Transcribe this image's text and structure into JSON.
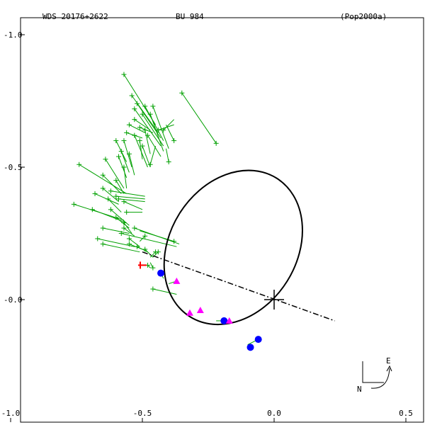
{
  "header": {
    "wds": "WDS 20176+2622",
    "disc": "BU  984",
    "ref": "(Pop2000a)"
  },
  "compass": {
    "east": "E",
    "north": "N"
  },
  "chart_data": {
    "type": "scatter",
    "title": "WDS 20176+2622",
    "subtitle": "BU  984",
    "xlabel": "",
    "ylabel": "",
    "xlim": [
      -1.0,
      0.55
    ],
    "ylim": [
      -0.47,
      1.0
    ],
    "x_ticks": [
      -1.0,
      -0.5,
      0.0,
      0.5
    ],
    "x_tick_labels": [
      "-1.0",
      "-0.5",
      "0.0",
      "0.5"
    ],
    "y_ticks": [
      1.0,
      0.5,
      0.0
    ],
    "y_tick_labels": [
      "-1.0",
      "-0.5",
      "-0.0"
    ],
    "grid": false,
    "colors": {
      "micrometric": "#00a000",
      "interferometric_blue": "#0000ff",
      "interferometric_magenta": "#ff00ff",
      "first_obs": "#ff0000",
      "orbit": "#000000"
    },
    "primary": [
      0.0,
      0.0
    ],
    "orbit_ellipse": {
      "center": [
        -0.155,
        0.197
      ],
      "rx": 0.31,
      "ry": 0.24,
      "rotation_deg": -58
    },
    "line_of_nodes": [
      [
        -0.5,
        0.18
      ],
      [
        0.23,
        -0.08
      ]
    ],
    "series": [
      {
        "marker": "plus",
        "points": [
          [
            -0.57,
            0.85
          ],
          [
            -0.54,
            0.77
          ],
          [
            -0.52,
            0.74
          ],
          [
            -0.49,
            0.73
          ],
          [
            -0.53,
            0.72
          ],
          [
            -0.5,
            0.7
          ],
          [
            -0.46,
            0.73
          ],
          [
            -0.47,
            0.7
          ],
          [
            -0.53,
            0.68
          ],
          [
            -0.51,
            0.65
          ],
          [
            -0.55,
            0.66
          ],
          [
            -0.56,
            0.63
          ],
          [
            -0.49,
            0.64
          ],
          [
            -0.53,
            0.62
          ],
          [
            -0.48,
            0.62
          ],
          [
            -0.44,
            0.64
          ],
          [
            -0.42,
            0.64
          ],
          [
            -0.51,
            0.6
          ],
          [
            -0.6,
            0.6
          ],
          [
            -0.57,
            0.6
          ],
          [
            -0.5,
            0.58
          ],
          [
            -0.58,
            0.56
          ],
          [
            -0.59,
            0.54
          ],
          [
            -0.55,
            0.55
          ],
          [
            -0.57,
            0.5
          ],
          [
            -0.74,
            0.51
          ],
          [
            -0.64,
            0.53
          ],
          [
            -0.6,
            0.45
          ],
          [
            -0.65,
            0.47
          ],
          [
            -0.65,
            0.42
          ],
          [
            -0.68,
            0.4
          ],
          [
            -0.62,
            0.41
          ],
          [
            -0.6,
            0.39
          ],
          [
            -0.59,
            0.38
          ],
          [
            -0.57,
            0.37
          ],
          [
            -0.63,
            0.38
          ],
          [
            -0.76,
            0.36
          ],
          [
            -0.69,
            0.34
          ],
          [
            -0.62,
            0.34
          ],
          [
            -0.56,
            0.33
          ],
          [
            -0.6,
            0.31
          ],
          [
            -0.57,
            0.29
          ],
          [
            -0.65,
            0.27
          ],
          [
            -0.57,
            0.27
          ],
          [
            -0.53,
            0.27
          ],
          [
            -0.58,
            0.25
          ],
          [
            -0.55,
            0.23
          ],
          [
            -0.67,
            0.23
          ],
          [
            -0.65,
            0.21
          ],
          [
            -0.55,
            0.21
          ],
          [
            -0.52,
            0.2
          ],
          [
            -0.49,
            0.19
          ],
          [
            -0.45,
            0.18
          ],
          [
            -0.46,
            0.12
          ],
          [
            -0.48,
            0.13
          ],
          [
            -0.35,
            0.78
          ],
          [
            -0.22,
            0.59
          ],
          [
            -0.38,
            0.6
          ],
          [
            -0.4,
            0.52
          ],
          [
            -0.47,
            0.51
          ],
          [
            -0.38,
            0.22
          ],
          [
            -0.49,
            0.24
          ],
          [
            -0.44,
            0.18
          ],
          [
            -0.46,
            0.04
          ]
        ]
      },
      {
        "marker": "circle",
        "points": [
          [
            -0.43,
            0.1
          ],
          [
            -0.19,
            -0.08
          ],
          [
            -0.06,
            -0.15
          ],
          [
            -0.09,
            -0.18
          ]
        ]
      },
      {
        "marker": "triangle",
        "points": [
          [
            -0.37,
            0.07
          ],
          [
            -0.32,
            -0.05
          ],
          [
            -0.28,
            -0.04
          ],
          [
            -0.17,
            -0.08
          ]
        ]
      },
      {
        "marker": "first-obs",
        "points": [
          [
            -0.5,
            0.13
          ]
        ]
      }
    ],
    "residuals": [
      [
        [
          -0.57,
          0.85
        ],
        [
          -0.45,
          0.66
        ]
      ],
      [
        [
          -0.54,
          0.77
        ],
        [
          -0.44,
          0.63
        ]
      ],
      [
        [
          -0.52,
          0.74
        ],
        [
          -0.43,
          0.61
        ]
      ],
      [
        [
          -0.49,
          0.73
        ],
        [
          -0.42,
          0.6
        ]
      ],
      [
        [
          -0.53,
          0.72
        ],
        [
          -0.43,
          0.58
        ]
      ],
      [
        [
          -0.5,
          0.7
        ],
        [
          -0.42,
          0.58
        ]
      ],
      [
        [
          -0.46,
          0.73
        ],
        [
          -0.4,
          0.57
        ]
      ],
      [
        [
          -0.47,
          0.7
        ],
        [
          -0.42,
          0.56
        ]
      ],
      [
        [
          -0.53,
          0.68
        ],
        [
          -0.47,
          0.64
        ]
      ],
      [
        [
          -0.51,
          0.65
        ],
        [
          -0.46,
          0.63
        ]
      ],
      [
        [
          -0.55,
          0.66
        ],
        [
          -0.49,
          0.63
        ]
      ],
      [
        [
          -0.56,
          0.63
        ],
        [
          -0.5,
          0.61
        ]
      ],
      [
        [
          -0.49,
          0.64
        ],
        [
          -0.47,
          0.55
        ]
      ],
      [
        [
          -0.53,
          0.62
        ],
        [
          -0.48,
          0.5
        ]
      ],
      [
        [
          -0.48,
          0.62
        ],
        [
          -0.43,
          0.54
        ]
      ],
      [
        [
          -0.44,
          0.64
        ],
        [
          -0.38,
          0.66
        ]
      ],
      [
        [
          -0.42,
          0.64
        ],
        [
          -0.38,
          0.68
        ]
      ],
      [
        [
          -0.51,
          0.6
        ],
        [
          -0.5,
          0.53
        ]
      ],
      [
        [
          -0.6,
          0.6
        ],
        [
          -0.56,
          0.52
        ]
      ],
      [
        [
          -0.57,
          0.6
        ],
        [
          -0.54,
          0.5
        ]
      ],
      [
        [
          -0.5,
          0.58
        ],
        [
          -0.47,
          0.5
        ]
      ],
      [
        [
          -0.58,
          0.56
        ],
        [
          -0.55,
          0.48
        ]
      ],
      [
        [
          -0.59,
          0.54
        ],
        [
          -0.56,
          0.46
        ]
      ],
      [
        [
          -0.55,
          0.55
        ],
        [
          -0.53,
          0.47
        ]
      ],
      [
        [
          -0.57,
          0.5
        ],
        [
          -0.56,
          0.42
        ]
      ],
      [
        [
          -0.74,
          0.51
        ],
        [
          -0.56,
          0.4
        ]
      ],
      [
        [
          -0.64,
          0.53
        ],
        [
          -0.57,
          0.42
        ]
      ],
      [
        [
          -0.6,
          0.45
        ],
        [
          -0.57,
          0.4
        ]
      ],
      [
        [
          -0.65,
          0.47
        ],
        [
          -0.58,
          0.4
        ]
      ],
      [
        [
          -0.65,
          0.42
        ],
        [
          -0.59,
          0.37
        ]
      ],
      [
        [
          -0.68,
          0.4
        ],
        [
          -0.59,
          0.36
        ]
      ],
      [
        [
          -0.62,
          0.41
        ],
        [
          -0.49,
          0.39
        ]
      ],
      [
        [
          -0.6,
          0.39
        ],
        [
          -0.49,
          0.38
        ]
      ],
      [
        [
          -0.59,
          0.38
        ],
        [
          -0.49,
          0.37
        ]
      ],
      [
        [
          -0.57,
          0.37
        ],
        [
          -0.5,
          0.34
        ]
      ],
      [
        [
          -0.63,
          0.38
        ],
        [
          -0.58,
          0.33
        ]
      ],
      [
        [
          -0.76,
          0.36
        ],
        [
          -0.57,
          0.3
        ]
      ],
      [
        [
          -0.69,
          0.34
        ],
        [
          -0.56,
          0.29
        ]
      ],
      [
        [
          -0.62,
          0.34
        ],
        [
          -0.55,
          0.28
        ]
      ],
      [
        [
          -0.56,
          0.33
        ],
        [
          -0.5,
          0.33
        ]
      ],
      [
        [
          -0.6,
          0.31
        ],
        [
          -0.55,
          0.27
        ]
      ],
      [
        [
          -0.57,
          0.29
        ],
        [
          -0.54,
          0.25
        ]
      ],
      [
        [
          -0.65,
          0.27
        ],
        [
          -0.55,
          0.25
        ]
      ],
      [
        [
          -0.57,
          0.27
        ],
        [
          -0.53,
          0.24
        ]
      ],
      [
        [
          -0.53,
          0.27
        ],
        [
          -0.36,
          0.21
        ]
      ],
      [
        [
          -0.58,
          0.25
        ],
        [
          -0.37,
          0.2
        ]
      ],
      [
        [
          -0.55,
          0.23
        ],
        [
          -0.51,
          0.2
        ]
      ],
      [
        [
          -0.67,
          0.23
        ],
        [
          -0.53,
          0.2
        ]
      ],
      [
        [
          -0.65,
          0.21
        ],
        [
          -0.51,
          0.18
        ]
      ],
      [
        [
          -0.55,
          0.21
        ],
        [
          -0.5,
          0.19
        ]
      ],
      [
        [
          -0.52,
          0.2
        ],
        [
          -0.48,
          0.18
        ]
      ],
      [
        [
          -0.49,
          0.19
        ],
        [
          -0.46,
          0.16
        ]
      ],
      [
        [
          -0.45,
          0.18
        ],
        [
          -0.47,
          0.16
        ]
      ],
      [
        [
          -0.46,
          0.12
        ],
        [
          -0.47,
          0.14
        ]
      ],
      [
        [
          -0.48,
          0.13
        ],
        [
          -0.47,
          0.12
        ]
      ],
      [
        [
          -0.35,
          0.78
        ],
        [
          -0.22,
          0.59
        ]
      ],
      [
        [
          -0.38,
          0.6
        ],
        [
          -0.41,
          0.66
        ]
      ],
      [
        [
          -0.4,
          0.52
        ],
        [
          -0.41,
          0.57
        ]
      ],
      [
        [
          -0.47,
          0.51
        ],
        [
          -0.45,
          0.58
        ]
      ],
      [
        [
          -0.38,
          0.22
        ],
        [
          -0.51,
          0.26
        ]
      ],
      [
        [
          -0.49,
          0.24
        ],
        [
          -0.51,
          0.22
        ]
      ],
      [
        [
          -0.44,
          0.18
        ],
        [
          -0.46,
          0.16
        ]
      ],
      [
        [
          -0.46,
          0.04
        ],
        [
          -0.37,
          0.02
        ]
      ],
      [
        [
          -0.43,
          0.1
        ],
        [
          -0.42,
          0.08
        ]
      ],
      [
        [
          -0.19,
          -0.08
        ],
        [
          -0.22,
          -0.08
        ]
      ],
      [
        [
          -0.06,
          -0.15
        ],
        [
          -0.1,
          -0.17
        ]
      ],
      [
        [
          -0.09,
          -0.18
        ],
        [
          -0.1,
          -0.17
        ]
      ],
      [
        [
          -0.37,
          0.07
        ],
        [
          -0.4,
          0.06
        ]
      ],
      [
        [
          -0.28,
          -0.04
        ],
        [
          -0.29,
          -0.05
        ]
      ]
    ]
  }
}
